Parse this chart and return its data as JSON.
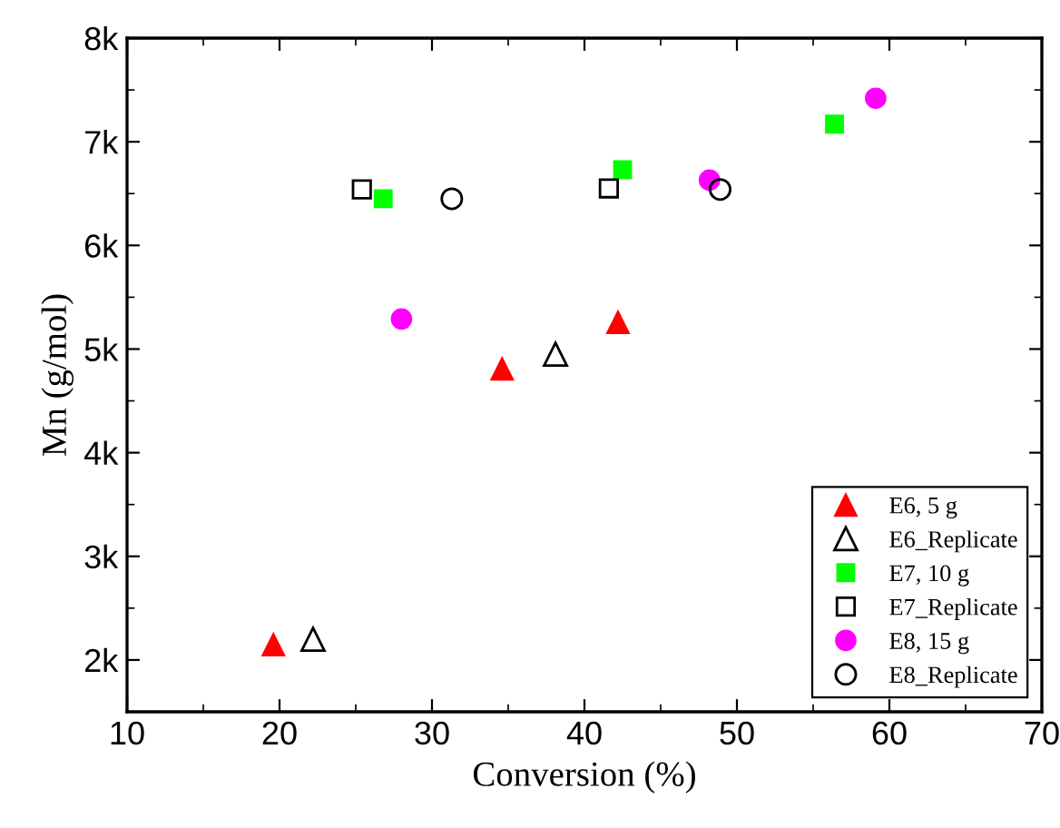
{
  "chart_data": {
    "type": "scatter",
    "xlabel": "Conversion (%)",
    "ylabel": "Mn (g/mol)",
    "xlim": [
      10,
      70
    ],
    "ylim": [
      1500,
      8000
    ],
    "xticks": [
      10,
      {
        "value": 15,
        "label": null
      },
      20,
      {
        "value": 25,
        "label": null
      },
      30,
      {
        "value": 35,
        "label": null
      },
      40,
      {
        "value": 45,
        "label": null
      },
      50,
      {
        "value": 55,
        "label": null
      },
      60,
      {
        "value": 65,
        "label": null
      },
      70
    ],
    "yticks": [
      {
        "value": 2000,
        "label": "2k"
      },
      {
        "value": 2500,
        "label": null
      },
      {
        "value": 3000,
        "label": "3k"
      },
      {
        "value": 3500,
        "label": null
      },
      {
        "value": 4000,
        "label": "4k"
      },
      {
        "value": 4500,
        "label": null
      },
      {
        "value": 5000,
        "label": "5k"
      },
      {
        "value": 5500,
        "label": null
      },
      {
        "value": 6000,
        "label": "6k"
      },
      {
        "value": 6500,
        "label": null
      },
      {
        "value": 7000,
        "label": "7k"
      },
      {
        "value": 7500,
        "label": null
      },
      {
        "value": 8000,
        "label": "8k"
      }
    ],
    "grid": false,
    "legend": "bottom right",
    "series": [
      {
        "name": "E6, 5 g",
        "color": "#ff0000",
        "marker": "triangle",
        "x": [
          19.6,
          34.6,
          42.2
        ],
        "values": [
          2150,
          4810,
          5260
        ]
      },
      {
        "name": "E6_Replicate",
        "color": "#000000",
        "marker": "triangle",
        "x": [
          22.2,
          38.1
        ],
        "values": [
          2200,
          4950
        ]
      },
      {
        "name": "E7, 10 g",
        "color": "#00ff00",
        "marker": "square",
        "x": [
          26.8,
          42.5,
          56.4
        ],
        "values": [
          6450,
          6730,
          7170
        ]
      },
      {
        "name": "E7_Replicate",
        "color": "#000000",
        "marker": "square",
        "x": [
          25.4,
          41.6
        ],
        "values": [
          6540,
          6550
        ]
      },
      {
        "name": "E8, 15 g",
        "color": "#ff00ff",
        "marker": "circle",
        "x": [
          28.0,
          48.2,
          59.1
        ],
        "values": [
          5290,
          6630,
          7420
        ]
      },
      {
        "name": "E8_Replicate",
        "color": "#000000",
        "marker": "circle",
        "x": [
          31.3,
          48.9
        ],
        "values": [
          6450,
          6540
        ]
      }
    ]
  }
}
